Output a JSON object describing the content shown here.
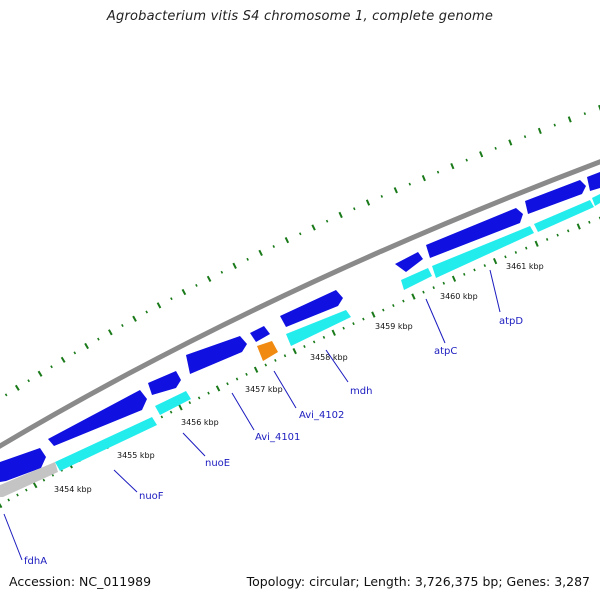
{
  "title": "Agrobacterium vitis S4 chromosome 1, complete genome",
  "footer": {
    "accession": "Accession: NC_011989",
    "summary": "Topology: circular; Length: 3,726,375 bp; Genes: 3,287"
  },
  "colors": {
    "backbone": "#8a8a8a",
    "forward_gene": "#1010e0",
    "reverse_gene": "#22ecec",
    "rna_gene": "#f08a10",
    "other_gene": "#c4c4c4",
    "tick": "#1a7a1a",
    "gene_label": "#1b1bbf"
  },
  "kbp_labels": [
    "3454 kbp",
    "3455 kbp",
    "3456 kbp",
    "3457 kbp",
    "3458 kbp",
    "3459 kbp",
    "3460 kbp",
    "3461 kbp"
  ],
  "gene_labels": [
    "fdhA",
    "nuoF",
    "nuoE",
    "Avi_4101",
    "Avi_4102",
    "mdh",
    "atpC",
    "atpD"
  ]
}
